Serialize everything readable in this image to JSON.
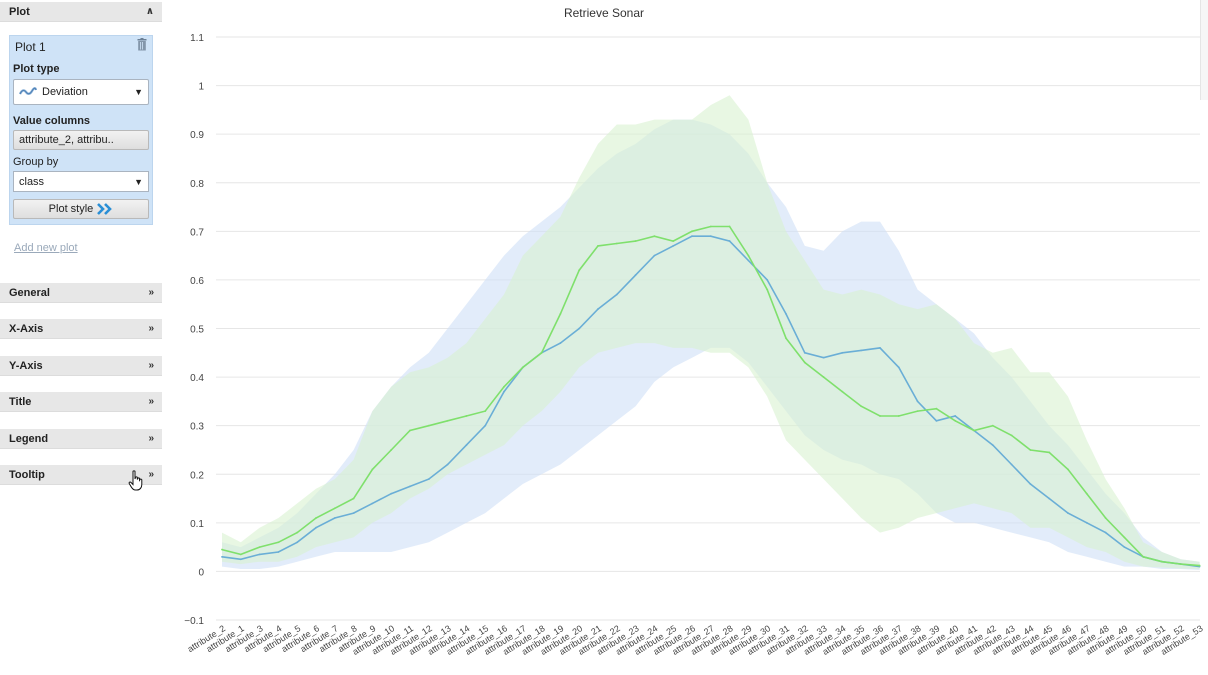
{
  "panel": {
    "plot_header": "Plot",
    "plot_header_icon": "double-chevron-up-icon",
    "plot_card": {
      "title": "Plot 1",
      "trash_icon": "trash-icon",
      "plot_type_label": "Plot type",
      "plot_type_value": "Deviation",
      "plot_type_icon": "deviation-chart-icon",
      "value_columns_label": "Value columns",
      "value_columns_value": "attribute_2, attribu..",
      "group_by_label": "Group by",
      "group_by_value": "class",
      "plot_style_label": "Plot style",
      "plot_style_icon": "double-chevron-right-icon"
    },
    "add_new_plot": "Add new plot",
    "sections": [
      {
        "label": "General",
        "icon": "double-chevron-down-icon"
      },
      {
        "label": "X-Axis",
        "icon": "double-chevron-down-icon"
      },
      {
        "label": "Y-Axis",
        "icon": "double-chevron-down-icon"
      },
      {
        "label": "Title",
        "icon": "double-chevron-down-icon"
      },
      {
        "label": "Legend",
        "icon": "double-chevron-down-icon"
      },
      {
        "label": "Tooltip",
        "icon": "double-chevron-down-icon"
      }
    ]
  },
  "chart_data": {
    "type": "line",
    "title": "Retrieve Sonar",
    "xlabel": "",
    "ylabel": "",
    "ylim": [
      -0.1,
      1.1
    ],
    "y_ticks": [
      "1.1",
      "1",
      "0.9",
      "0.8",
      "0.7",
      "0.6",
      "0.5",
      "0.4",
      "0.3",
      "0.2",
      "0.1",
      "0",
      "−0.1"
    ],
    "grid": true,
    "legend": "none",
    "categories": [
      "attribute_2",
      "attribute_1",
      "attribute_3",
      "attribute_4",
      "attribute_5",
      "attribute_6",
      "attribute_7",
      "attribute_8",
      "attribute_9",
      "attribute_10",
      "attribute_11",
      "attribute_12",
      "attribute_13",
      "attribute_14",
      "attribute_15",
      "attribute_16",
      "attribute_17",
      "attribute_18",
      "attribute_19",
      "attribute_20",
      "attribute_21",
      "attribute_22",
      "attribute_23",
      "attribute_24",
      "attribute_25",
      "attribute_26",
      "attribute_27",
      "attribute_28",
      "attribute_29",
      "attribute_30",
      "attribute_31",
      "attribute_32",
      "attribute_33",
      "attribute_34",
      "attribute_35",
      "attribute_36",
      "attribute_37",
      "attribute_38",
      "attribute_39",
      "attribute_40",
      "attribute_41",
      "attribute_42",
      "attribute_43",
      "attribute_44",
      "attribute_45",
      "attribute_46",
      "attribute_47",
      "attribute_48",
      "attribute_49",
      "attribute_50",
      "attribute_51",
      "attribute_52",
      "attribute_53"
    ],
    "series": [
      {
        "color": "#6aaed6",
        "band_color": "#cfe0f7",
        "values": [
          0.03,
          0.025,
          0.035,
          0.04,
          0.06,
          0.09,
          0.11,
          0.12,
          0.14,
          0.16,
          0.175,
          0.19,
          0.22,
          0.26,
          0.3,
          0.37,
          0.42,
          0.45,
          0.47,
          0.5,
          0.54,
          0.57,
          0.61,
          0.65,
          0.67,
          0.69,
          0.69,
          0.68,
          0.64,
          0.6,
          0.53,
          0.45,
          0.44,
          0.45,
          0.455,
          0.46,
          0.42,
          0.35,
          0.31,
          0.32,
          0.29,
          0.26,
          0.22,
          0.18,
          0.15,
          0.12,
          0.1,
          0.08,
          0.05,
          0.03,
          0.02,
          0.015,
          0.01
        ],
        "upper": [
          0.06,
          0.05,
          0.07,
          0.09,
          0.12,
          0.16,
          0.2,
          0.25,
          0.33,
          0.38,
          0.42,
          0.45,
          0.5,
          0.55,
          0.6,
          0.65,
          0.69,
          0.72,
          0.75,
          0.79,
          0.83,
          0.86,
          0.88,
          0.91,
          0.93,
          0.93,
          0.92,
          0.9,
          0.86,
          0.8,
          0.75,
          0.67,
          0.66,
          0.7,
          0.72,
          0.72,
          0.66,
          0.58,
          0.55,
          0.52,
          0.49,
          0.44,
          0.4,
          0.35,
          0.3,
          0.26,
          0.21,
          0.16,
          0.12,
          0.07,
          0.04,
          0.025,
          0.02
        ],
        "lower": [
          0.01,
          0.005,
          0.005,
          0.01,
          0.02,
          0.03,
          0.04,
          0.04,
          0.04,
          0.04,
          0.05,
          0.06,
          0.08,
          0.1,
          0.12,
          0.15,
          0.18,
          0.2,
          0.22,
          0.25,
          0.28,
          0.31,
          0.34,
          0.39,
          0.42,
          0.44,
          0.46,
          0.46,
          0.43,
          0.38,
          0.33,
          0.28,
          0.25,
          0.23,
          0.22,
          0.2,
          0.19,
          0.16,
          0.12,
          0.1,
          0.1,
          0.09,
          0.08,
          0.07,
          0.06,
          0.04,
          0.03,
          0.02,
          0.01,
          0.01,
          0.005,
          0.005,
          0.003
        ]
      },
      {
        "color": "#7fe06c",
        "band_color": "#d8f2d0",
        "values": [
          0.045,
          0.035,
          0.05,
          0.06,
          0.08,
          0.11,
          0.13,
          0.15,
          0.21,
          0.25,
          0.29,
          0.3,
          0.31,
          0.32,
          0.33,
          0.38,
          0.42,
          0.45,
          0.53,
          0.62,
          0.67,
          0.675,
          0.68,
          0.69,
          0.68,
          0.7,
          0.71,
          0.71,
          0.65,
          0.58,
          0.48,
          0.43,
          0.4,
          0.37,
          0.34,
          0.32,
          0.32,
          0.33,
          0.335,
          0.31,
          0.29,
          0.3,
          0.28,
          0.25,
          0.245,
          0.21,
          0.16,
          0.11,
          0.07,
          0.03,
          0.02,
          0.015,
          0.012
        ],
        "upper": [
          0.08,
          0.06,
          0.09,
          0.11,
          0.14,
          0.17,
          0.19,
          0.23,
          0.33,
          0.38,
          0.41,
          0.42,
          0.44,
          0.47,
          0.52,
          0.57,
          0.65,
          0.69,
          0.73,
          0.81,
          0.88,
          0.92,
          0.92,
          0.93,
          0.93,
          0.93,
          0.96,
          0.98,
          0.93,
          0.8,
          0.7,
          0.64,
          0.58,
          0.57,
          0.58,
          0.57,
          0.55,
          0.54,
          0.55,
          0.52,
          0.47,
          0.45,
          0.46,
          0.41,
          0.41,
          0.36,
          0.27,
          0.19,
          0.13,
          0.06,
          0.04,
          0.025,
          0.02
        ],
        "lower": [
          0.02,
          0.015,
          0.02,
          0.02,
          0.03,
          0.05,
          0.06,
          0.07,
          0.1,
          0.12,
          0.15,
          0.17,
          0.2,
          0.22,
          0.24,
          0.26,
          0.3,
          0.33,
          0.37,
          0.42,
          0.45,
          0.46,
          0.47,
          0.47,
          0.46,
          0.46,
          0.45,
          0.45,
          0.42,
          0.36,
          0.27,
          0.23,
          0.19,
          0.15,
          0.11,
          0.08,
          0.09,
          0.11,
          0.12,
          0.13,
          0.14,
          0.13,
          0.12,
          0.09,
          0.09,
          0.07,
          0.05,
          0.04,
          0.02,
          0.01,
          0.008,
          0.006,
          0.005
        ]
      }
    ]
  }
}
